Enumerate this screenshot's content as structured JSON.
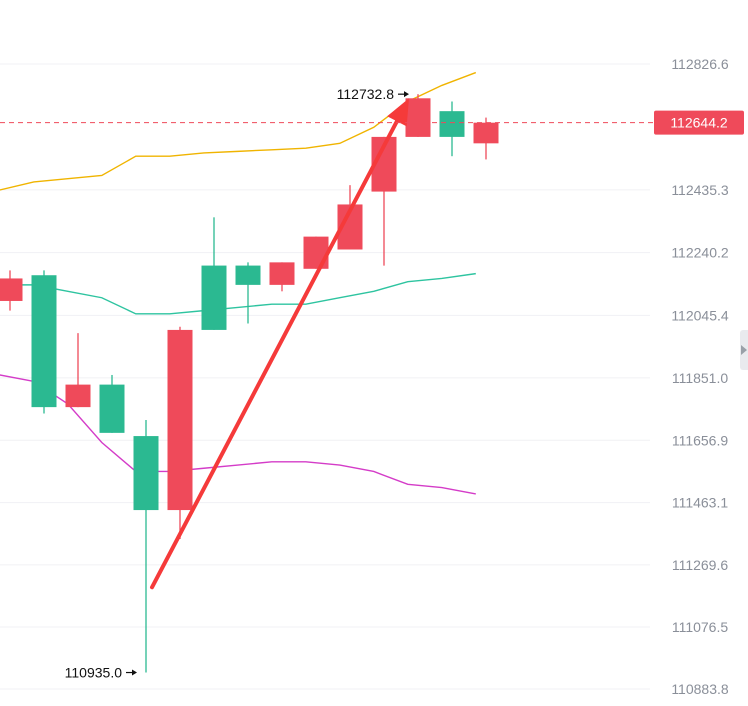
{
  "chart_data": {
    "type": "candlestick",
    "y_axis": {
      "min": 110883.8,
      "max": 112826.6,
      "ticks": [
        "112826.6",
        "112435.3",
        "112240.2",
        "112045.4",
        "111851.0",
        "111656.9",
        "111463.1",
        "111269.6",
        "111076.5",
        "110883.8"
      ],
      "position": "right"
    },
    "grid": "horizontal",
    "candles": [
      {
        "open": 112160,
        "close": 112090,
        "high": 112185,
        "low": 112060
      },
      {
        "open": 111760,
        "close": 112170,
        "high": 112185,
        "low": 111740
      },
      {
        "open": 111830,
        "close": 111760,
        "high": 111990,
        "low": 111760
      },
      {
        "open": 111680,
        "close": 111830,
        "high": 111860,
        "low": 111680
      },
      {
        "open": 111440,
        "close": 111670,
        "high": 111720,
        "low": 110935.0
      },
      {
        "open": 112000,
        "close": 111440,
        "high": 112010,
        "low": 111350
      },
      {
        "open": 112000,
        "close": 112200,
        "high": 112350,
        "low": 112000
      },
      {
        "open": 112140,
        "close": 112200,
        "high": 112210,
        "low": 112020
      },
      {
        "open": 112210,
        "close": 112140,
        "high": 112210,
        "low": 112120
      },
      {
        "open": 112290,
        "close": 112190,
        "high": 112290,
        "low": 112190
      },
      {
        "open": 112390,
        "close": 112250,
        "high": 112450,
        "low": 112250
      },
      {
        "open": 112600,
        "close": 112430,
        "high": 112600,
        "low": 112200
      },
      {
        "open": 112720,
        "close": 112600,
        "high": 112732.8,
        "low": 112600
      },
      {
        "open": 112600,
        "close": 112680,
        "high": 112710,
        "low": 112540
      },
      {
        "open": 112644.2,
        "close": 112580,
        "high": 112660,
        "low": 112530
      }
    ],
    "candle_colors": {
      "up": "#2bb991",
      "down": "#ef4a5a"
    },
    "ma_lines": [
      {
        "color": "#f0b400",
        "values": [
          112435,
          112460,
          112470,
          112480,
          112540,
          112540,
          112550,
          112555,
          112560,
          112565,
          112580,
          112630,
          112710,
          112760,
          112800
        ]
      },
      {
        "color": "#2ec4a0",
        "values": [
          112140,
          112140,
          112120,
          112100,
          112050,
          112050,
          112060,
          112070,
          112080,
          112080,
          112100,
          112120,
          112150,
          112160,
          112175
        ]
      },
      {
        "color": "#d43cc8",
        "values": [
          111860,
          111840,
          111770,
          111650,
          111560,
          111560,
          111570,
          111580,
          111590,
          111590,
          111580,
          111560,
          111520,
          111510,
          111490
        ]
      }
    ],
    "current_price": {
      "value": 112644.2,
      "label": "112644.2",
      "color": "#ef4a5a"
    },
    "annotations": [
      {
        "text": "112732.8",
        "value": 112732.8,
        "candle": 12,
        "side": "left"
      },
      {
        "text": "110935.0",
        "value": 110935.0,
        "candle": 4,
        "side": "left"
      }
    ],
    "trend_arrow": {
      "from": {
        "candle": 4,
        "value": 111200
      },
      "to": {
        "candle": 11,
        "value": 112720
      },
      "color": "#f53a3a"
    }
  }
}
